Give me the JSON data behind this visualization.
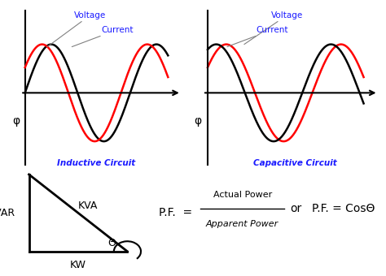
{
  "background_color": "#ffffff",
  "inductive_title": "Inductive Circuit",
  "capacitive_title": "Capacitive Circuit",
  "voltage_label": "Voltage",
  "current_label": "Current",
  "phi_label": "φ",
  "voltage_color": "red",
  "current_color": "black",
  "label_color": "#1a1aff",
  "title_color": "#1a1aff",
  "triangle_labels": [
    "KVA",
    "KVAR",
    "KW"
  ],
  "pf_formula_top": "Actual Power",
  "pf_formula_bottom": "Apparent Power",
  "pf_text1": "P.F.  =",
  "pf_text2": "or",
  "pf_text3": "P.F. = CosΘ",
  "theta_label": "Θ",
  "inductive_phase_shift": 0.55,
  "capacitive_phase_shift": -0.55
}
